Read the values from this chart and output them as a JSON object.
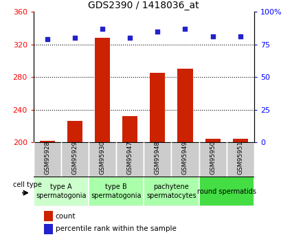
{
  "title": "GDS2390 / 1418036_at",
  "samples": [
    "GSM95928",
    "GSM95929",
    "GSM95930",
    "GSM95947",
    "GSM95948",
    "GSM95949",
    "GSM95950",
    "GSM95951"
  ],
  "counts": [
    202,
    226,
    328,
    232,
    285,
    290,
    204,
    204
  ],
  "percentile_ranks": [
    79,
    80,
    87,
    80,
    85,
    87,
    81,
    81
  ],
  "ylim_left": [
    200,
    360
  ],
  "ylim_right": [
    0,
    100
  ],
  "yticks_left": [
    200,
    240,
    280,
    320,
    360
  ],
  "yticks_right": [
    0,
    25,
    50,
    75,
    100
  ],
  "ytick_labels_right": [
    "0",
    "25",
    "50",
    "75",
    "100%"
  ],
  "bar_color": "#cc2200",
  "dot_color": "#2222cc",
  "cell_types": [
    {
      "label": "type A\nspermatogonia",
      "start": 0,
      "end": 2,
      "color": "#ccffcc"
    },
    {
      "label": "type B\nspermatogonia",
      "start": 2,
      "end": 4,
      "color": "#aaffaa"
    },
    {
      "label": "pachytene\nspermatocytes",
      "start": 4,
      "end": 6,
      "color": "#aaffaa"
    },
    {
      "label": "round spermatids",
      "start": 6,
      "end": 8,
      "color": "#44dd44"
    }
  ],
  "cell_type_label": "cell type",
  "legend_count_label": "count",
  "legend_percentile_label": "percentile rank within the sample",
  "title_fontsize": 10,
  "tick_fontsize": 8,
  "bar_width": 0.55,
  "sample_bg_color": "#cccccc",
  "grid_color": "#000000",
  "sample_fontsize": 6.5,
  "cell_type_fontsize": 7,
  "legend_fontsize": 7.5
}
